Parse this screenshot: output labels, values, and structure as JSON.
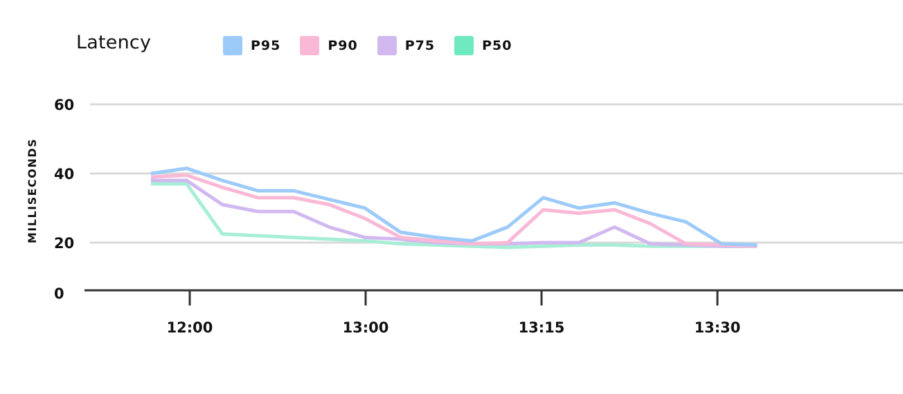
{
  "chart_data": {
    "type": "line",
    "title": "Latency",
    "xlabel": "",
    "ylabel": "MILLISECONDS",
    "ylim": [
      0,
      60
    ],
    "yticks": [
      0,
      20,
      40,
      60
    ],
    "xtick_labels": [
      "12:00",
      "13:00",
      "13:15",
      "13:30"
    ],
    "grid": true,
    "legend_position": "top",
    "x": [
      0,
      1,
      2,
      3,
      4,
      5,
      6,
      7,
      8,
      9,
      10,
      11,
      12,
      13,
      14,
      15,
      16,
      17
    ],
    "series": [
      {
        "name": "P95",
        "color": "#9dcbf9",
        "values": [
          40,
          41.5,
          38,
          35,
          35,
          32.5,
          30,
          23,
          21.5,
          20.5,
          24.5,
          33,
          30,
          31.5,
          28.5,
          26,
          19.5,
          19
        ]
      },
      {
        "name": "P90",
        "color": "#f9b9d6",
        "values": [
          39,
          39.5,
          36,
          33,
          33,
          31,
          27,
          21.5,
          20.5,
          19.5,
          20,
          29.5,
          28.5,
          29.5,
          25.5,
          19.5,
          19,
          18.5
        ]
      },
      {
        "name": "P75",
        "color": "#d1b9f0",
        "values": [
          38,
          38,
          31,
          29,
          29,
          24.5,
          21.5,
          21,
          20,
          19.5,
          19.5,
          20,
          20,
          24.5,
          19.5,
          19,
          18.5,
          18.5
        ]
      },
      {
        "name": "P50",
        "color": "#a7eed6",
        "values": [
          37,
          37,
          22.5,
          22,
          21.5,
          21,
          20.5,
          19.5,
          19,
          18.5,
          18,
          18.5,
          19,
          19,
          18.5,
          18.5,
          18.5,
          18.5
        ]
      }
    ],
    "legend": [
      {
        "label": "P95",
        "color": "#9dcbf9"
      },
      {
        "label": "P90",
        "color": "#f9b9d6"
      },
      {
        "label": "P75",
        "color": "#d1b9f0"
      },
      {
        "label": "P50",
        "color": "#6fe9c0"
      }
    ]
  }
}
